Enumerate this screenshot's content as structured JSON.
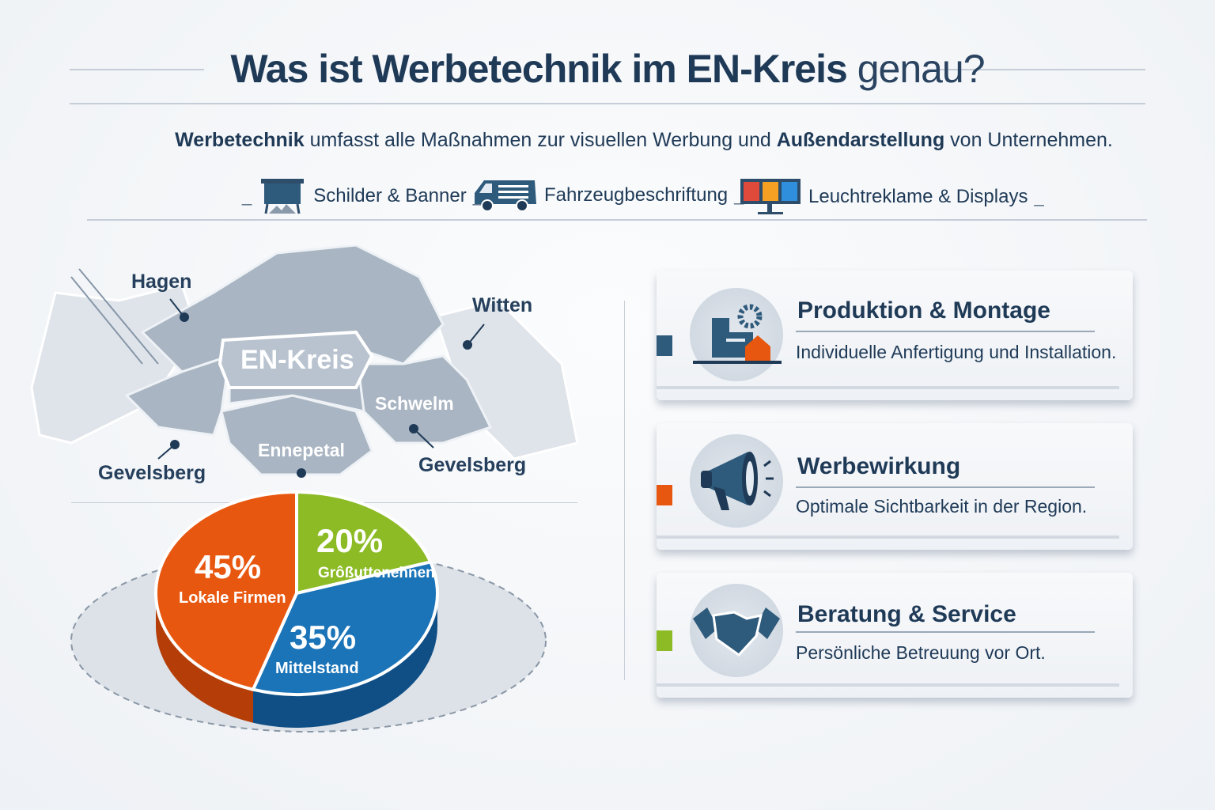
{
  "header": {
    "title_bold": "Was ist Werbetechnik im EN-Kreis",
    "title_light": "genau?"
  },
  "intro": {
    "part1": "Werbetechnik",
    "part2": " umfasst alle Maßnahmen zur visuellen Werbung und ",
    "part3": "Außendarstellung",
    "part4": " von Unternehmen."
  },
  "categories": [
    {
      "label": "Schilder & Banner",
      "icon": "sign-board-icon"
    },
    {
      "label": "Fahrzeugbeschriftung",
      "icon": "van-icon"
    },
    {
      "label": "Leuchtreklame & Displays",
      "icon": "display-icon"
    }
  ],
  "separator": "_",
  "map": {
    "center_label": "EN-Kreis",
    "labels": [
      "Hagen",
      "Witten",
      "Schwelm",
      "Ennepetal",
      "Gevelsberg",
      "Gevelsberg"
    ]
  },
  "chart_data": {
    "type": "pie",
    "categories": [
      "Größutteneh­nen",
      "Mittelstand",
      "Lokale Firmen"
    ],
    "values": [
      20,
      35,
      45
    ],
    "value_labels": [
      "20%",
      "35%",
      "45%"
    ],
    "slice_labels": [
      "Grôßuttenehnen",
      "Mittelstand",
      "Lokale Firmen"
    ],
    "colors": [
      "#8cbb26",
      "#1b74b8",
      "#e8570f"
    ]
  },
  "cards": [
    {
      "title": "Produktion & Montage",
      "text": "Individuelle Anfertigung und Installation.",
      "accent": "#2e5a7c",
      "icon": "factory-gear-icon"
    },
    {
      "title": "Werbewirkung",
      "text": "Optimale Sichtbarkeit in der Region.",
      "accent": "#e8570f",
      "icon": "megaphone-icon"
    },
    {
      "title": "Beratung & Service",
      "text": "Persönliche Betreuung vor Ort.",
      "accent": "#8cbb26",
      "icon": "handshake-icon"
    }
  ]
}
